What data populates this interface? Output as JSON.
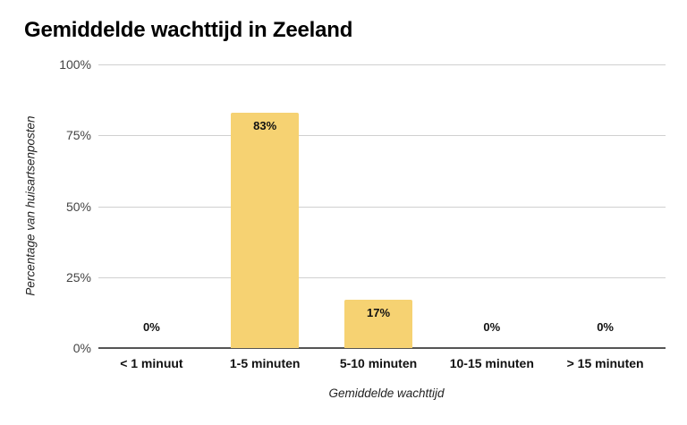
{
  "chart_data": {
    "type": "bar",
    "title": "Gemiddelde wachttijd in Zeeland",
    "xlabel": "Gemiddelde wachttijd",
    "ylabel": "Percentage van huisartsenposten",
    "categories": [
      "< 1 minuut",
      "1-5 minuten",
      "5-10 minuten",
      "10-15 minuten",
      "> 15 minuten"
    ],
    "values": [
      0,
      83,
      17,
      0,
      0
    ],
    "value_labels": [
      "0%",
      "83%",
      "17%",
      "0%",
      "0%"
    ],
    "ylim": [
      0,
      100
    ],
    "yticks": [
      "0%",
      "25%",
      "50%",
      "75%",
      "100%"
    ],
    "grid": true,
    "legend": "none",
    "bar_color": "#f6d272"
  }
}
